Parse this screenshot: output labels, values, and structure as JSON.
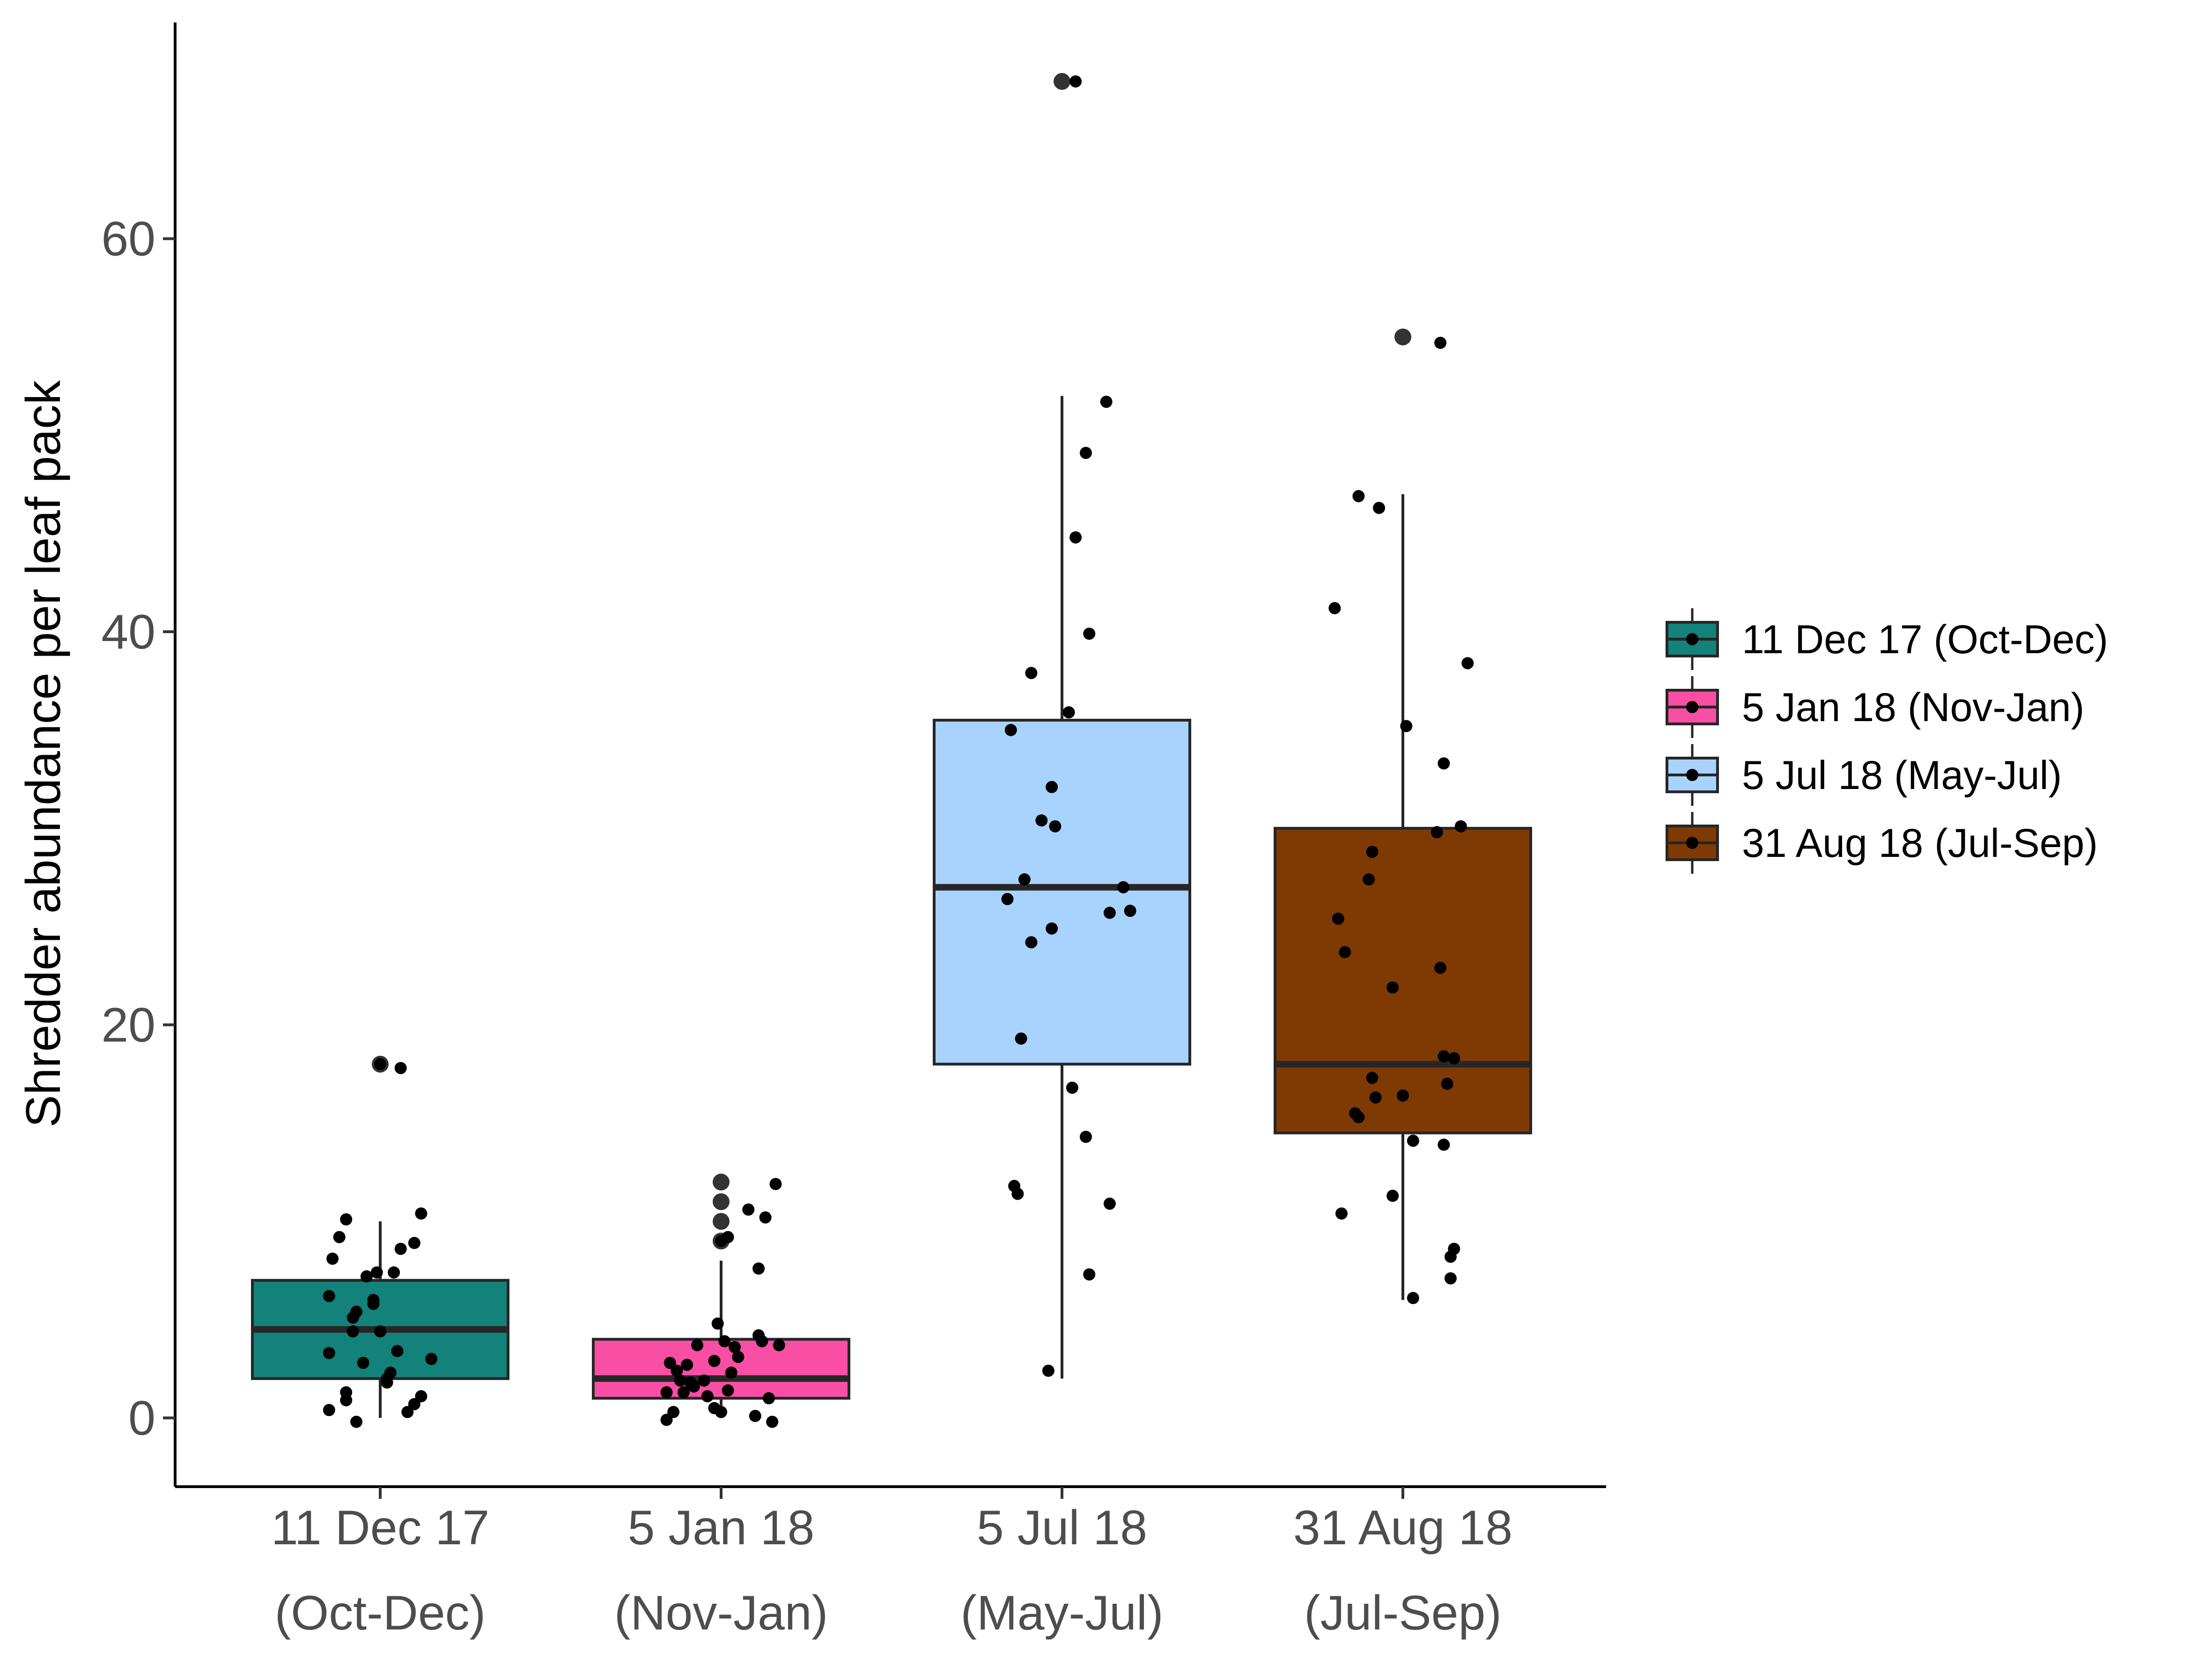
{
  "chart_data": {
    "type": "boxplot",
    "ylabel": "Shredder abundance per leaf pack",
    "xlabel": "",
    "ylim": [
      -3.5,
      71
    ],
    "yticks": [
      0,
      20,
      40,
      60
    ],
    "grid": false,
    "legend_position": "right",
    "categories": [
      {
        "line1": "11 Dec 17",
        "line2": "(Oct-Dec)"
      },
      {
        "line1": "5 Jan 18",
        "line2": "(Nov-Jan)"
      },
      {
        "line1": "5 Jul 18",
        "line2": "(May-Jul)"
      },
      {
        "line1": "31 Aug 18",
        "line2": "(Jul-Sep)"
      }
    ],
    "series": [
      {
        "name": "11 Dec 17 (Oct-Dec)",
        "color": "#12827B",
        "box": {
          "whisker_low": 0,
          "q1": 2,
          "median": 4.5,
          "q3": 7,
          "whisker_high": 10
        },
        "outliers": [
          18
        ],
        "points": [
          {
            "dx": -0.15,
            "y": 0.4
          },
          {
            "dx": -0.14,
            "y": 8.1
          },
          {
            "dx": -0.1,
            "y": 10.1
          },
          {
            "dx": -0.1,
            "y": 1.3
          },
          {
            "dx": -0.1,
            "y": 0.9
          },
          {
            "dx": -0.15,
            "y": 3.3
          },
          {
            "dx": -0.15,
            "y": 6.2
          },
          {
            "dx": -0.12,
            "y": 9.2
          },
          {
            "dx": -0.08,
            "y": 5.1
          },
          {
            "dx": -0.08,
            "y": 4.4
          },
          {
            "dx": -0.07,
            "y": 5.4
          },
          {
            "dx": -0.05,
            "y": 2.8
          },
          {
            "dx": -0.04,
            "y": 7.2
          },
          {
            "dx": -0.02,
            "y": 6.0
          },
          {
            "dx": -0.02,
            "y": 5.8
          },
          {
            "dx": -0.01,
            "y": 7.4
          },
          {
            "dx": 0.0,
            "y": 4.4
          },
          {
            "dx": 0.02,
            "y": 2.0
          },
          {
            "dx": 0.02,
            "y": 1.8
          },
          {
            "dx": 0.03,
            "y": 2.3
          },
          {
            "dx": 0.04,
            "y": 7.4
          },
          {
            "dx": 0.05,
            "y": 3.4
          },
          {
            "dx": 0.06,
            "y": 8.6
          },
          {
            "dx": 0.08,
            "y": 0.3
          },
          {
            "dx": 0.1,
            "y": 0.7
          },
          {
            "dx": 0.1,
            "y": 8.9
          },
          {
            "dx": 0.12,
            "y": 1.1
          },
          {
            "dx": 0.12,
            "y": 10.4
          },
          {
            "dx": 0.15,
            "y": 3.0
          },
          {
            "dx": -0.07,
            "y": -0.2
          },
          {
            "dx": 0.0,
            "y": 18.0
          },
          {
            "dx": 0.06,
            "y": 17.8
          }
        ]
      },
      {
        "name": "5 Jan 18 (Nov-Jan)",
        "color": "#F84FA4",
        "box": {
          "whisker_low": 0,
          "q1": 1,
          "median": 2,
          "q3": 4,
          "whisker_high": 8
        },
        "outliers": [
          9,
          10,
          11,
          12
        ],
        "points": [
          {
            "dx": -0.16,
            "y": -0.1
          },
          {
            "dx": -0.16,
            "y": 1.3
          },
          {
            "dx": -0.15,
            "y": 2.8
          },
          {
            "dx": -0.14,
            "y": 0.3
          },
          {
            "dx": -0.13,
            "y": 2.4
          },
          {
            "dx": -0.12,
            "y": 1.9
          },
          {
            "dx": -0.11,
            "y": 1.3
          },
          {
            "dx": -0.1,
            "y": 2.7
          },
          {
            "dx": -0.09,
            "y": 1.8
          },
          {
            "dx": -0.08,
            "y": 1.6
          },
          {
            "dx": -0.07,
            "y": 3.7
          },
          {
            "dx": -0.05,
            "y": 1.9
          },
          {
            "dx": -0.04,
            "y": 1.1
          },
          {
            "dx": -0.02,
            "y": 2.9
          },
          {
            "dx": -0.02,
            "y": 0.5
          },
          {
            "dx": -0.01,
            "y": 4.8
          },
          {
            "dx": 0.0,
            "y": 0.3
          },
          {
            "dx": 0.01,
            "y": 3.9
          },
          {
            "dx": 0.02,
            "y": 1.4
          },
          {
            "dx": 0.03,
            "y": 2.3
          },
          {
            "dx": 0.04,
            "y": 3.6
          },
          {
            "dx": 0.05,
            "y": 3.1
          },
          {
            "dx": 0.08,
            "y": 10.6
          },
          {
            "dx": 0.1,
            "y": 0.1
          },
          {
            "dx": 0.11,
            "y": 4.2
          },
          {
            "dx": 0.11,
            "y": 7.6
          },
          {
            "dx": 0.12,
            "y": 3.9
          },
          {
            "dx": 0.13,
            "y": 10.2
          },
          {
            "dx": 0.14,
            "y": 1.0
          },
          {
            "dx": 0.15,
            "y": -0.2
          },
          {
            "dx": 0.16,
            "y": 11.9
          },
          {
            "dx": 0.17,
            "y": 3.7
          },
          {
            "dx": 0.0,
            "y": 9.0
          },
          {
            "dx": 0.02,
            "y": 9.2
          }
        ]
      },
      {
        "name": "5 Jul 18 (May-Jul)",
        "color": "#A9D3FF",
        "box": {
          "whisker_low": 2,
          "q1": 18,
          "median": 27,
          "q3": 35.5,
          "whisker_high": 52
        },
        "outliers": [
          68
        ],
        "points": [
          {
            "dx": -0.16,
            "y": 26.4
          },
          {
            "dx": -0.15,
            "y": 35.0
          },
          {
            "dx": -0.14,
            "y": 11.8
          },
          {
            "dx": -0.13,
            "y": 11.4
          },
          {
            "dx": -0.12,
            "y": 19.3
          },
          {
            "dx": -0.11,
            "y": 27.4
          },
          {
            "dx": -0.09,
            "y": 37.9
          },
          {
            "dx": -0.09,
            "y": 24.2
          },
          {
            "dx": -0.06,
            "y": 30.4
          },
          {
            "dx": -0.04,
            "y": 2.4
          },
          {
            "dx": -0.03,
            "y": 24.9
          },
          {
            "dx": -0.03,
            "y": 32.1
          },
          {
            "dx": -0.02,
            "y": 30.1
          },
          {
            "dx": 0.02,
            "y": 35.9
          },
          {
            "dx": 0.03,
            "y": 16.8
          },
          {
            "dx": 0.04,
            "y": 44.8
          },
          {
            "dx": 0.07,
            "y": 14.3
          },
          {
            "dx": 0.07,
            "y": 49.1
          },
          {
            "dx": 0.08,
            "y": 7.3
          },
          {
            "dx": 0.08,
            "y": 39.9
          },
          {
            "dx": 0.13,
            "y": 51.7
          },
          {
            "dx": 0.14,
            "y": 25.7
          },
          {
            "dx": 0.14,
            "y": 10.9
          },
          {
            "dx": 0.18,
            "y": 27.0
          },
          {
            "dx": 0.2,
            "y": 25.8
          },
          {
            "dx": 0.04,
            "y": 68.0
          }
        ]
      },
      {
        "name": "31 Aug 18 (Jul-Sep)",
        "color": "#7F3A03",
        "box": {
          "whisker_low": 6,
          "q1": 14.5,
          "median": 18,
          "q3": 30,
          "whisker_high": 47
        },
        "outliers": [
          55
        ],
        "points": [
          {
            "dx": -0.2,
            "y": 41.2
          },
          {
            "dx": -0.19,
            "y": 25.4
          },
          {
            "dx": -0.18,
            "y": 10.4
          },
          {
            "dx": -0.17,
            "y": 23.7
          },
          {
            "dx": -0.14,
            "y": 15.5
          },
          {
            "dx": -0.13,
            "y": 15.3
          },
          {
            "dx": -0.13,
            "y": 46.9
          },
          {
            "dx": -0.1,
            "y": 27.4
          },
          {
            "dx": -0.09,
            "y": 17.3
          },
          {
            "dx": -0.09,
            "y": 28.8
          },
          {
            "dx": -0.08,
            "y": 16.3
          },
          {
            "dx": -0.07,
            "y": 46.3
          },
          {
            "dx": -0.03,
            "y": 21.9
          },
          {
            "dx": -0.03,
            "y": 11.3
          },
          {
            "dx": 0.0,
            "y": 16.4
          },
          {
            "dx": 0.01,
            "y": 35.2
          },
          {
            "dx": 0.03,
            "y": 6.1
          },
          {
            "dx": 0.03,
            "y": 14.1
          },
          {
            "dx": 0.1,
            "y": 29.8
          },
          {
            "dx": 0.11,
            "y": 22.9
          },
          {
            "dx": 0.12,
            "y": 13.9
          },
          {
            "dx": 0.12,
            "y": 33.3
          },
          {
            "dx": 0.12,
            "y": 18.4
          },
          {
            "dx": 0.13,
            "y": 17.0
          },
          {
            "dx": 0.14,
            "y": 7.1
          },
          {
            "dx": 0.14,
            "y": 8.2
          },
          {
            "dx": 0.15,
            "y": 8.6
          },
          {
            "dx": 0.15,
            "y": 18.3
          },
          {
            "dx": 0.17,
            "y": 30.1
          },
          {
            "dx": 0.19,
            "y": 38.4
          },
          {
            "dx": 0.11,
            "y": 54.7
          }
        ]
      }
    ]
  },
  "colors": {
    "box_stroke": "#262626",
    "median": "#262626",
    "point": "#000000",
    "outlier": "#333333",
    "axis": "#000000",
    "tick_text": "#4d4d4d"
  }
}
